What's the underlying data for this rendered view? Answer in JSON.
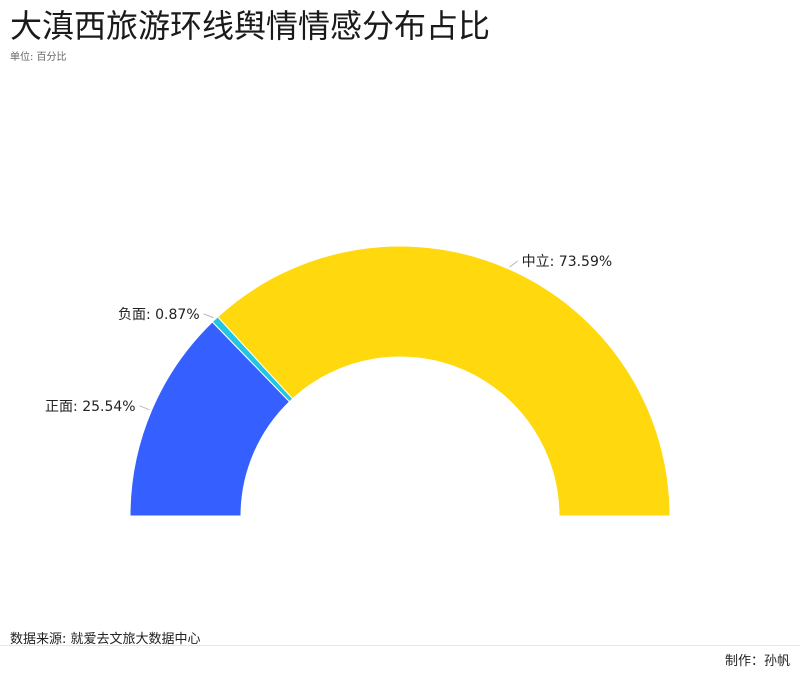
{
  "chart_data": {
    "type": "pie",
    "title": "大滇西旅游环线舆情情感分布占比",
    "subtitle": "单位: 百分比",
    "categories": [
      "正面",
      "负面",
      "中立"
    ],
    "values": [
      25.54,
      0.87,
      73.59
    ],
    "labels": [
      "正面: 25.54%",
      "负面: 0.87%",
      "中立: 73.59%"
    ],
    "colors": [
      "#3560FF",
      "#22C6E0",
      "#FFD80E"
    ],
    "legend": "none"
  },
  "footer": {
    "source": "数据来源: 就爱去文旅大数据中心",
    "credit": "制作：孙帆"
  }
}
